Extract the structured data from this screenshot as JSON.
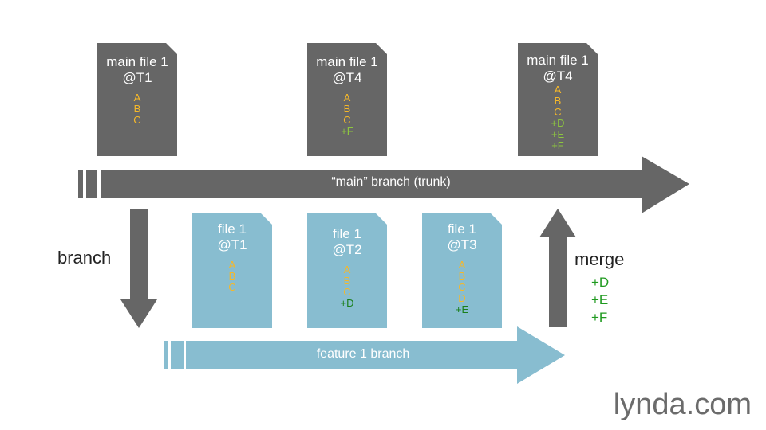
{
  "main_branch": {
    "label": "“main” branch (trunk)",
    "color": "#666666"
  },
  "feature_branch": {
    "label": "feature 1 branch",
    "color": "#88bdd0"
  },
  "branch_label": "branch",
  "merge_label": "merge",
  "merge_changes": [
    "+D",
    "+E",
    "+F"
  ],
  "main_docs": [
    {
      "title1": "main file 1",
      "title2": "@T1",
      "lines": [
        {
          "text": "A",
          "kind": "base"
        },
        {
          "text": "B",
          "kind": "base"
        },
        {
          "text": "C",
          "kind": "base"
        }
      ]
    },
    {
      "title1": "main file 1",
      "title2": "@T4",
      "lines": [
        {
          "text": "A",
          "kind": "base"
        },
        {
          "text": "B",
          "kind": "base"
        },
        {
          "text": "C",
          "kind": "base"
        },
        {
          "text": "+F",
          "kind": "added-main"
        }
      ]
    },
    {
      "title1": "main file 1",
      "title2": "@T4",
      "lines": [
        {
          "text": "A",
          "kind": "base"
        },
        {
          "text": "B",
          "kind": "base"
        },
        {
          "text": "C",
          "kind": "base"
        },
        {
          "text": "+D",
          "kind": "added-main"
        },
        {
          "text": "+E",
          "kind": "added-main"
        },
        {
          "text": "+F",
          "kind": "added-main"
        }
      ]
    }
  ],
  "feature_docs": [
    {
      "title1": "file 1",
      "title2": "@T1",
      "lines": [
        {
          "text": "A",
          "kind": "base"
        },
        {
          "text": "B",
          "kind": "base"
        },
        {
          "text": "C",
          "kind": "base"
        }
      ]
    },
    {
      "title1": "file 1",
      "title2": "@T2",
      "lines": [
        {
          "text": "A",
          "kind": "base"
        },
        {
          "text": "B",
          "kind": "base"
        },
        {
          "text": "C",
          "kind": "base"
        },
        {
          "text": "+D",
          "kind": "added-feature"
        }
      ]
    },
    {
      "title1": "file 1",
      "title2": "@T3",
      "lines": [
        {
          "text": "A",
          "kind": "base"
        },
        {
          "text": "B",
          "kind": "base"
        },
        {
          "text": "C",
          "kind": "base"
        },
        {
          "text": "D",
          "kind": "base"
        },
        {
          "text": "+E",
          "kind": "added-feature"
        }
      ]
    }
  ],
  "colors": {
    "doc_main": "#666666",
    "doc_feature": "#88bdd0",
    "base_line": "#f5b82a",
    "added_main": "#8dc63f",
    "added_feature": "#1a7f1a"
  },
  "logo": "lynda.com"
}
